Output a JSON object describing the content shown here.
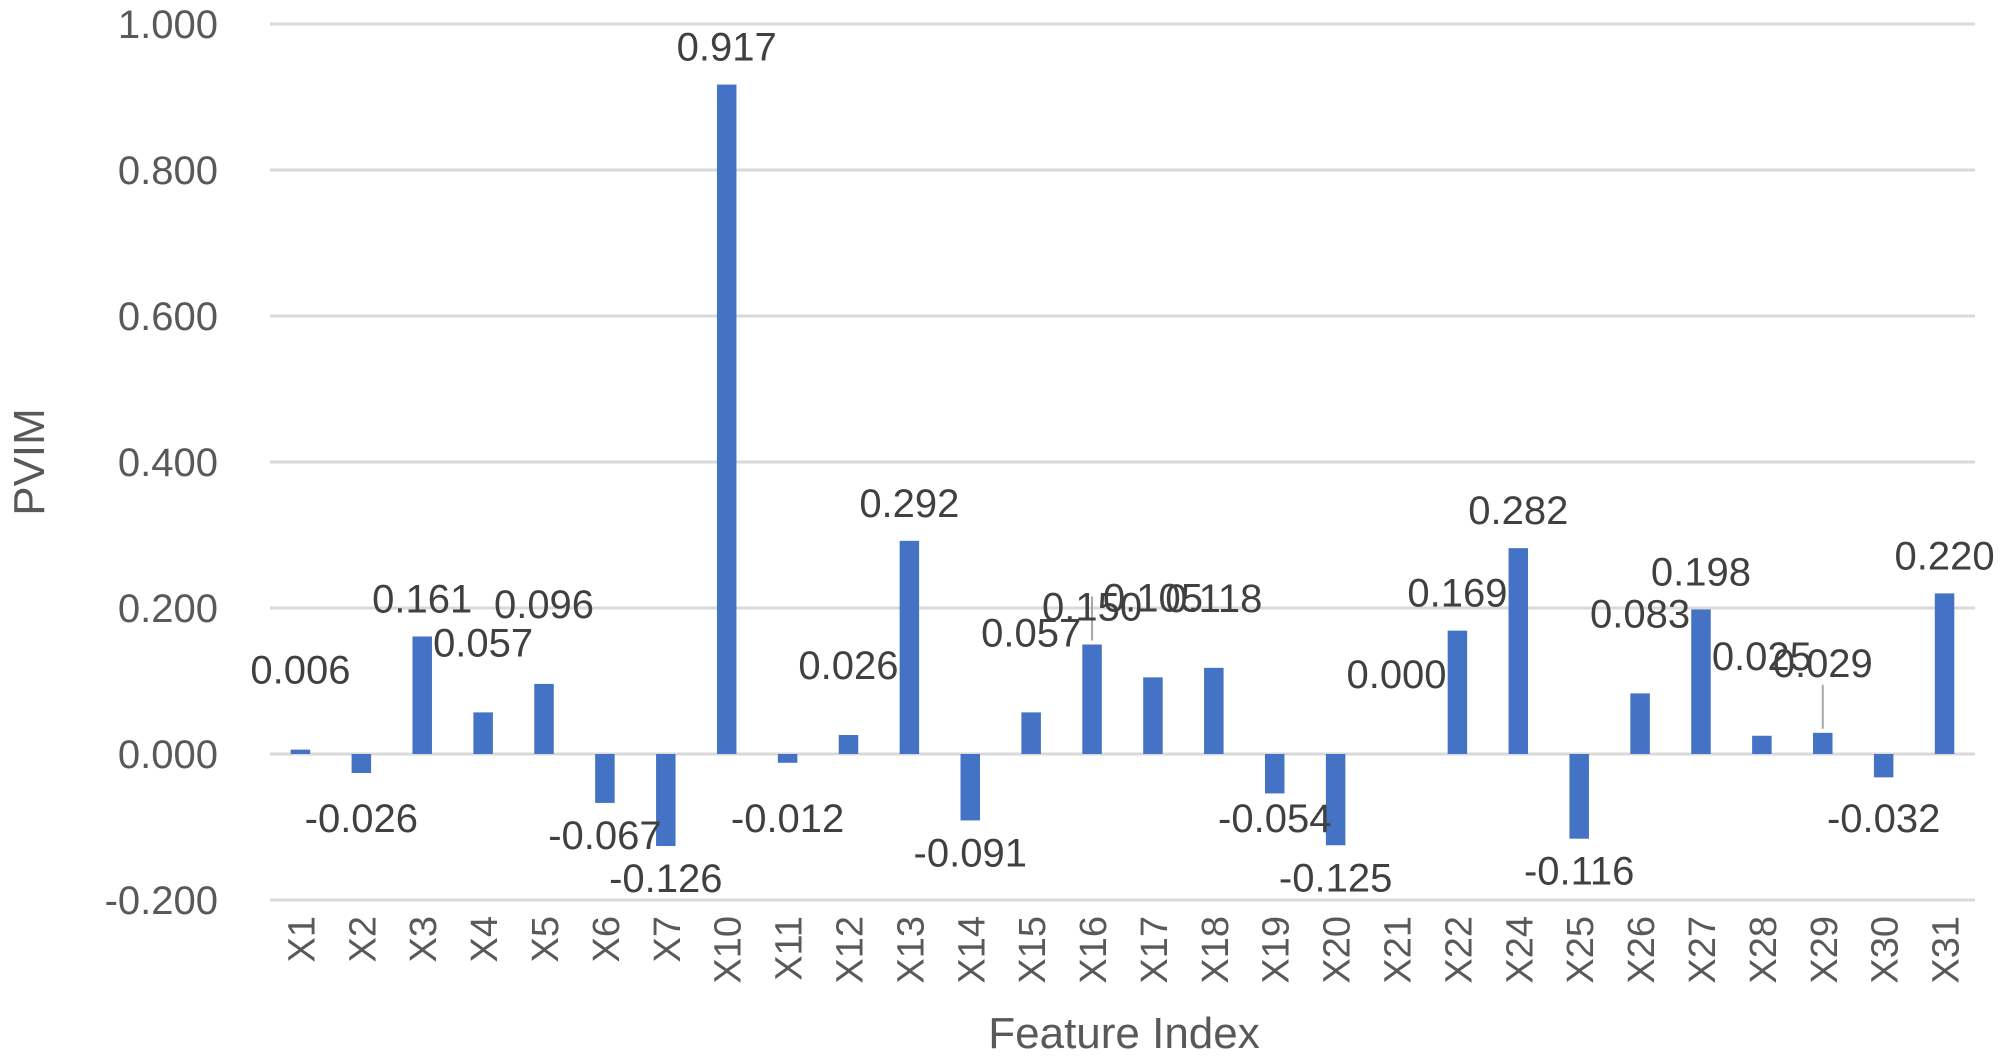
{
  "chart_data": {
    "type": "bar",
    "title": "",
    "xlabel": "Feature Index",
    "ylabel": "PVIM",
    "ylim": [
      -0.2,
      1.0
    ],
    "ytick_step": 0.2,
    "ytick_labels": [
      "-0.200",
      "0.000",
      "0.200",
      "0.400",
      "0.600",
      "0.800",
      "1.000"
    ],
    "grid": true,
    "legend": "none",
    "bar_color": "#4472c4",
    "categories": [
      "X1",
      "X2",
      "X3",
      "X4",
      "X5",
      "X6",
      "X7",
      "X10",
      "X11",
      "X12",
      "X13",
      "X14",
      "X15",
      "X16",
      "X17",
      "X18",
      "X19",
      "X20",
      "X21",
      "X22",
      "X24",
      "X25",
      "X26",
      "X27",
      "X28",
      "X29",
      "X30",
      "X31"
    ],
    "values": [
      0.006,
      -0.026,
      0.161,
      0.057,
      0.096,
      -0.067,
      -0.126,
      0.917,
      -0.012,
      0.026,
      0.292,
      -0.091,
      0.057,
      0.15,
      0.105,
      0.118,
      -0.054,
      -0.125,
      0.0,
      0.169,
      0.282,
      -0.116,
      0.083,
      0.198,
      0.025,
      0.029,
      -0.032,
      0.22
    ],
    "data_labels": [
      "0.006",
      "-0.026",
      "0.161",
      "0.057",
      "0.096",
      "-0.067",
      "-0.126",
      "0.917",
      "-0.012",
      "0.026",
      "0.292",
      "-0.091",
      "0.057",
      "0.150",
      "0.105",
      "0.118",
      "-0.054",
      "-0.125",
      "0.000",
      "0.169",
      "0.282",
      "-0.116",
      "0.083",
      "0.198",
      "0.025",
      "0.029",
      "-0.032",
      "0.220"
    ]
  }
}
